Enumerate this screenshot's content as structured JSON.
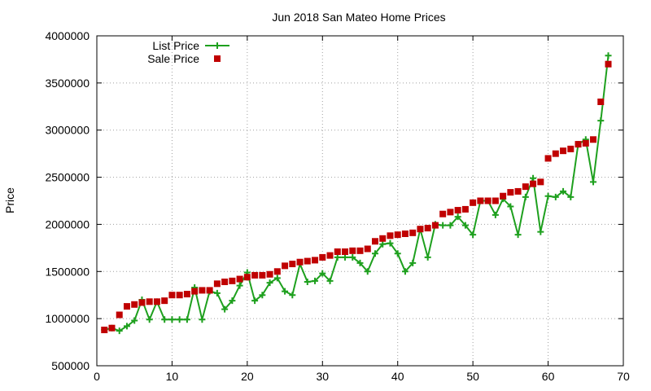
{
  "chart_data": {
    "type": "line",
    "title": "Jun 2018 San Mateo Home Prices",
    "xlabel": "",
    "ylabel": "Price",
    "xlim": [
      0,
      70
    ],
    "ylim": [
      500000,
      4000000
    ],
    "x_ticks": [
      0,
      10,
      20,
      30,
      40,
      50,
      60,
      70
    ],
    "y_ticks": [
      500000,
      1000000,
      1500000,
      2000000,
      2500000,
      3000000,
      3500000,
      4000000
    ],
    "grid": true,
    "legend_position": "top-left",
    "series": [
      {
        "name": "List Price",
        "style": "linespoints",
        "marker": "plus",
        "color": "#1ea01e",
        "x": [
          1,
          2,
          3,
          4,
          5,
          6,
          7,
          8,
          9,
          10,
          11,
          12,
          13,
          14,
          15,
          16,
          17,
          18,
          19,
          20,
          21,
          22,
          23,
          24,
          25,
          26,
          27,
          28,
          29,
          30,
          31,
          32,
          33,
          34,
          35,
          36,
          37,
          38,
          39,
          40,
          41,
          42,
          43,
          44,
          45,
          46,
          47,
          48,
          49,
          50,
          51,
          52,
          53,
          54,
          55,
          56,
          57,
          58,
          59,
          60,
          61,
          62,
          63,
          64,
          65,
          66,
          67,
          68
        ],
        "y": [
          880000,
          900000,
          870000,
          920000,
          980000,
          1200000,
          990000,
          1180000,
          990000,
          990000,
          990000,
          990000,
          1330000,
          990000,
          1290000,
          1270000,
          1100000,
          1190000,
          1350000,
          1490000,
          1190000,
          1250000,
          1380000,
          1430000,
          1290000,
          1250000,
          1580000,
          1390000,
          1400000,
          1480000,
          1400000,
          1650000,
          1650000,
          1650000,
          1590000,
          1500000,
          1690000,
          1790000,
          1800000,
          1690000,
          1500000,
          1590000,
          1950000,
          1650000,
          2000000,
          1990000,
          1990000,
          2080000,
          1990000,
          1890000,
          2250000,
          2250000,
          2100000,
          2270000,
          2190000,
          1890000,
          2290000,
          2490000,
          1920000,
          2300000,
          2290000,
          2350000,
          2290000,
          2850000,
          2900000,
          2450000,
          3100000,
          3790000
        ]
      },
      {
        "name": "Sale Price",
        "style": "points",
        "marker": "square",
        "color": "#c00000",
        "x": [
          1,
          2,
          3,
          4,
          5,
          6,
          7,
          8,
          9,
          10,
          11,
          12,
          13,
          14,
          15,
          16,
          17,
          18,
          19,
          20,
          21,
          22,
          23,
          24,
          25,
          26,
          27,
          28,
          29,
          30,
          31,
          32,
          33,
          34,
          35,
          36,
          37,
          38,
          39,
          40,
          41,
          42,
          43,
          44,
          45,
          46,
          47,
          48,
          49,
          50,
          51,
          52,
          53,
          54,
          55,
          56,
          57,
          58,
          59,
          60,
          61,
          62,
          63,
          64,
          65,
          66,
          67,
          68
        ],
        "y": [
          880000,
          900000,
          1040000,
          1130000,
          1150000,
          1170000,
          1180000,
          1180000,
          1190000,
          1250000,
          1250000,
          1260000,
          1290000,
          1300000,
          1300000,
          1370000,
          1390000,
          1400000,
          1420000,
          1440000,
          1460000,
          1460000,
          1470000,
          1500000,
          1560000,
          1580000,
          1600000,
          1610000,
          1620000,
          1650000,
          1670000,
          1710000,
          1710000,
          1720000,
          1720000,
          1740000,
          1820000,
          1850000,
          1880000,
          1890000,
          1900000,
          1910000,
          1950000,
          1960000,
          1990000,
          2110000,
          2130000,
          2150000,
          2160000,
          2230000,
          2250000,
          2250000,
          2250000,
          2300000,
          2340000,
          2350000,
          2400000,
          2430000,
          2450000,
          2700000,
          2750000,
          2780000,
          2800000,
          2850000,
          2860000,
          2900000,
          3300000,
          3700000
        ]
      }
    ]
  }
}
